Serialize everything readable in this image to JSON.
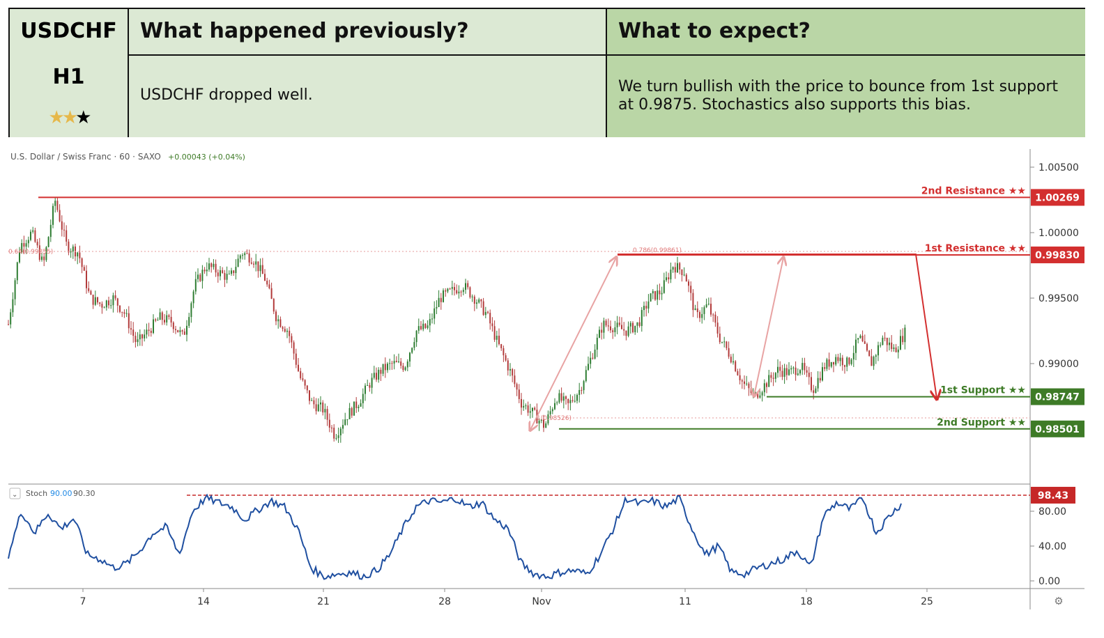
{
  "header": {
    "symbol": "USDCHF",
    "timeframe": "H1",
    "rating": {
      "filled": 2,
      "total": 3
    },
    "prev_title": "What happened previously?",
    "prev_text": "USDCHF dropped well.",
    "expect_title": "What to expect?",
    "expect_text": "We turn bullish with the price to bounce from 1st support at 0.9875. Stochastics also supports this bias."
  },
  "chart_data": [
    {
      "type": "candlestick",
      "title": "U.S. Dollar / Swiss Franc · 60 · SAXO",
      "change": "+0.00043 (+0.04%)",
      "ylim": [
        0.978,
        1.007
      ],
      "yticks": [
        "1.00500",
        "1.00000",
        "0.99500",
        "0.99000"
      ],
      "ytick_values": [
        1.005,
        1.0,
        0.995,
        0.99
      ],
      "xticks": [
        "7",
        "14",
        "21",
        "28",
        "Nov",
        "11",
        "18",
        "25"
      ],
      "price_path": [
        [
          0,
          0.993
        ],
        [
          1,
          0.999
        ],
        [
          2,
          1.0
        ],
        [
          3,
          0.9975
        ],
        [
          4,
          1.0025
        ],
        [
          5,
          0.999
        ],
        [
          6,
          0.9985
        ],
        [
          7,
          0.995
        ],
        [
          8,
          0.9945
        ],
        [
          9,
          0.995
        ],
        [
          10,
          0.9938
        ],
        [
          11,
          0.9915
        ],
        [
          12,
          0.9925
        ],
        [
          13,
          0.9935
        ],
        [
          14,
          0.9932
        ],
        [
          15,
          0.992
        ],
        [
          16,
          0.996
        ],
        [
          17,
          0.9975
        ],
        [
          18,
          0.997
        ],
        [
          19,
          0.9965
        ],
        [
          20,
          0.9985
        ],
        [
          21,
          0.998
        ],
        [
          22,
          0.9965
        ],
        [
          23,
          0.9935
        ],
        [
          24,
          0.9925
        ],
        [
          25,
          0.989
        ],
        [
          26,
          0.987
        ],
        [
          27,
          0.9865
        ],
        [
          28,
          0.9845
        ],
        [
          29,
          0.986
        ],
        [
          30,
          0.987
        ],
        [
          31,
          0.9885
        ],
        [
          32,
          0.9895
        ],
        [
          33,
          0.99
        ],
        [
          34,
          0.9898
        ],
        [
          35,
          0.9925
        ],
        [
          36,
          0.9928
        ],
        [
          37,
          0.995
        ],
        [
          38,
          0.9955
        ],
        [
          39,
          0.996
        ],
        [
          40,
          0.995
        ],
        [
          41,
          0.9938
        ],
        [
          42,
          0.9915
        ],
        [
          43,
          0.9895
        ],
        [
          44,
          0.987
        ],
        [
          45,
          0.9862
        ],
        [
          46,
          0.9852
        ],
        [
          47,
          0.9875
        ],
        [
          48,
          0.9868
        ],
        [
          49,
          0.988
        ],
        [
          50,
          0.9905
        ],
        [
          51,
          0.993
        ],
        [
          52,
          0.9928
        ],
        [
          53,
          0.9925
        ],
        [
          54,
          0.993
        ],
        [
          55,
          0.995
        ],
        [
          56,
          0.9955
        ],
        [
          57,
          0.9975
        ],
        [
          58,
          0.997
        ],
        [
          59,
          0.9935
        ],
        [
          60,
          0.9945
        ],
        [
          61,
          0.992
        ],
        [
          62,
          0.9905
        ],
        [
          63,
          0.9885
        ],
        [
          64,
          0.9875
        ],
        [
          65,
          0.9885
        ],
        [
          66,
          0.9895
        ],
        [
          67,
          0.9893
        ],
        [
          68,
          0.9898
        ],
        [
          69,
          0.988
        ],
        [
          70,
          0.9898
        ],
        [
          71,
          0.9905
        ],
        [
          72,
          0.99
        ],
        [
          73,
          0.992
        ],
        [
          74,
          0.99
        ],
        [
          75,
          0.992
        ],
        [
          76,
          0.991
        ],
        [
          77,
          0.9925
        ]
      ],
      "levels": [
        {
          "label": "2nd Resistance ★★",
          "value": 1.00269,
          "value_text": "1.00269",
          "color": "#d32f2f"
        },
        {
          "label": "1st Resistance ★★",
          "value": 0.9983,
          "value_text": "0.99830",
          "color": "#d32f2f"
        },
        {
          "label": "1st Support ★★",
          "value": 0.98747,
          "value_text": "0.98747",
          "color": "#3e7b27"
        },
        {
          "label": "2nd Support ★★",
          "value": 0.98501,
          "value_text": "0.98501",
          "color": "#3e7b27"
        }
      ],
      "fib_labels": [
        "0.786(0.99861)",
        "0.64(0.99855)",
        "1(0.98526)"
      ]
    },
    {
      "type": "line",
      "title": "Stoch",
      "k": "90.00",
      "d": "90.30",
      "ylim": [
        0,
        100
      ],
      "yticks": [
        "80.00",
        "40.00",
        "0.00"
      ],
      "ytick_values": [
        80,
        40,
        0
      ],
      "level": {
        "value": 98.43,
        "value_text": "98.43"
      },
      "series": [
        {
          "values": [
            30,
            80,
            55,
            78,
            60,
            72,
            30,
            25,
            15,
            20,
            35,
            55,
            62,
            30,
            80,
            95,
            90,
            85,
            70,
            82,
            92,
            85,
            60,
            15,
            5,
            8,
            10,
            5,
            12,
            30,
            60,
            85,
            92,
            90,
            95,
            85,
            90,
            70,
            60,
            20,
            8,
            5,
            10,
            12,
            8,
            30,
            60,
            95,
            88,
            92,
            85,
            95,
            60,
            30,
            40,
            10,
            8,
            15,
            20,
            25,
            35,
            15,
            75,
            90,
            82,
            95,
            55,
            75,
            90
          ]
        }
      ]
    }
  ],
  "time_axis": {
    "gear": "⚙"
  }
}
